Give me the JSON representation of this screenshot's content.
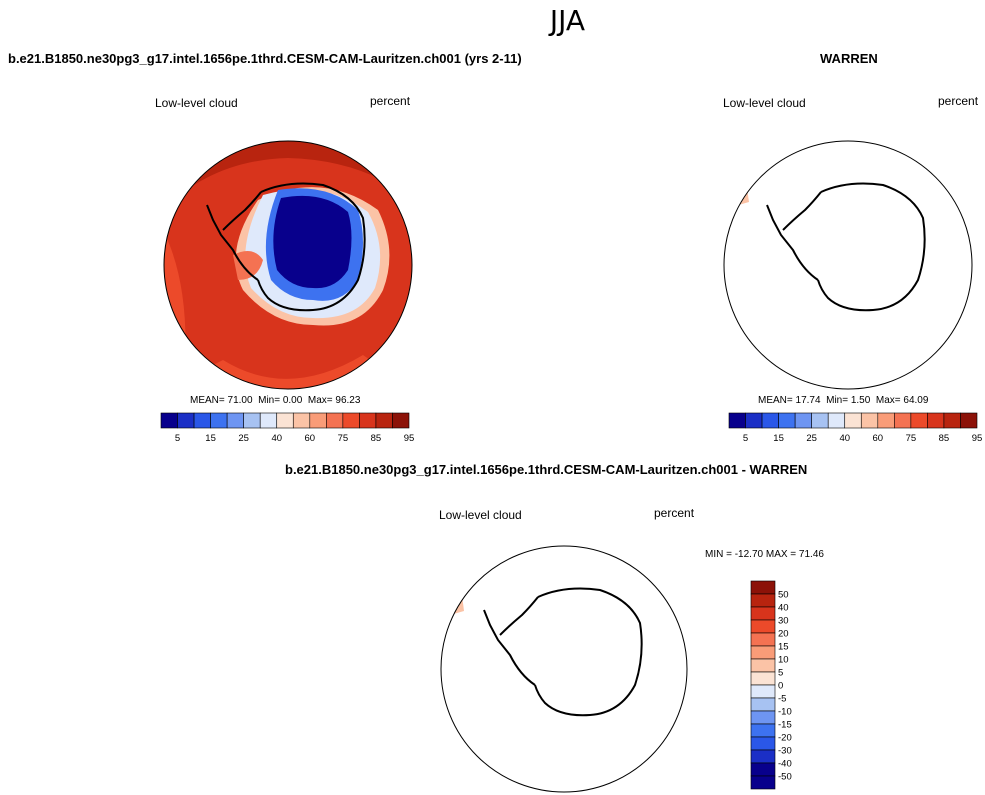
{
  "page_title": "JJA",
  "panels": {
    "case": {
      "title": "b.e21.B1850.ne30pg3_g17.intel.1656pe.1thrd.CESM-CAM-Lauritzen.ch001 (yrs 2-11)",
      "variable": "Low-level cloud",
      "units": "percent",
      "stats": {
        "mean_label": "MEAN=",
        "mean": "71.00",
        "min_label": "Min=",
        "min": "0.00",
        "max_label": "Max=",
        "max": "96.23"
      }
    },
    "obs": {
      "title": "WARREN",
      "variable": "Low-level cloud",
      "units": "percent",
      "stats": {
        "mean_label": "MEAN=",
        "mean": "17.74",
        "min_label": "Min=",
        "min": "1.50",
        "max_label": "Max=",
        "max": "64.09"
      }
    },
    "diff": {
      "title": "b.e21.B1850.ne30pg3_g17.intel.1656pe.1thrd.CESM-CAM-Lauritzen.ch001 - WARREN",
      "variable": "Low-level cloud",
      "units": "percent",
      "stats": {
        "text": "MIN = -12.70 MAX =  71.46"
      }
    }
  },
  "colorbar_main": {
    "tick_labels": [
      "5",
      "15",
      "25",
      "40",
      "60",
      "75",
      "85",
      "95"
    ],
    "colors": [
      "#08008c",
      "#1b2fc6",
      "#2a57e8",
      "#3d72f0",
      "#6e95f2",
      "#a7c2f2",
      "#dfe9fb",
      "#fbe3d4",
      "#fbc3a6",
      "#f99c78",
      "#f47252",
      "#ec4a2a",
      "#d8341c",
      "#b8240f",
      "#8c1208"
    ]
  },
  "colorbar_diff": {
    "tick_labels": [
      "50",
      "40",
      "30",
      "20",
      "15",
      "10",
      "5",
      "0",
      "-5",
      "-10",
      "-15",
      "-20",
      "-30",
      "-40",
      "-50"
    ],
    "colors": [
      "#8c1208",
      "#b8240f",
      "#d8341c",
      "#ec4a2a",
      "#f47252",
      "#f99c78",
      "#fbc3a6",
      "#fbe3d4",
      "#dfe9fb",
      "#a7c2f2",
      "#6e95f2",
      "#3d72f0",
      "#2a57e8",
      "#1b2fc6",
      "#08008c",
      "#08008c"
    ]
  },
  "map_colors": {
    "ocean_high": "#d8341c",
    "ocean_mid": "#ec4a2a",
    "ocean_top": "#b8240f",
    "ice_low": "#08008c",
    "ice_mid": "#2a57e8",
    "edge_light": "#dfe9fb",
    "edge_pale": "#a7c2f2",
    "patch": "#fbc3a6"
  }
}
